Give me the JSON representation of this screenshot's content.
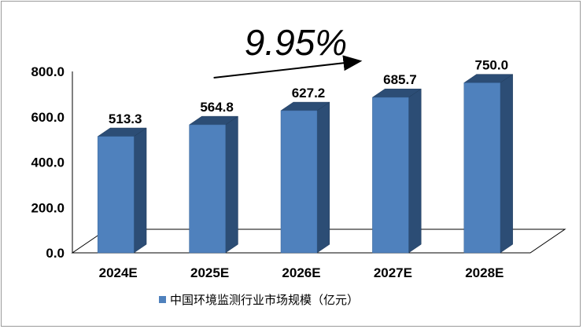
{
  "chart_data": {
    "type": "bar",
    "categories": [
      "2024E",
      "2025E",
      "2026E",
      "2027E",
      "2028E"
    ],
    "series": [
      {
        "name": "中国环境监测行业市场规模（亿元）",
        "values": [
          513.3,
          564.8,
          627.2,
          685.7,
          750.0
        ],
        "value_labels": [
          "513.3",
          "564.8",
          "627.2",
          "685.7",
          "750.0"
        ],
        "color": "#4f81bd"
      }
    ],
    "y_ticks": [
      "0.0",
      "200.0",
      "400.0",
      "600.0",
      "800.0"
    ],
    "ylim": [
      0,
      800
    ],
    "legend_position": "bottom",
    "grid": false,
    "annotation": {
      "text": "9.95%",
      "arrow_from": "2025E",
      "arrow_to": "2027E"
    }
  }
}
